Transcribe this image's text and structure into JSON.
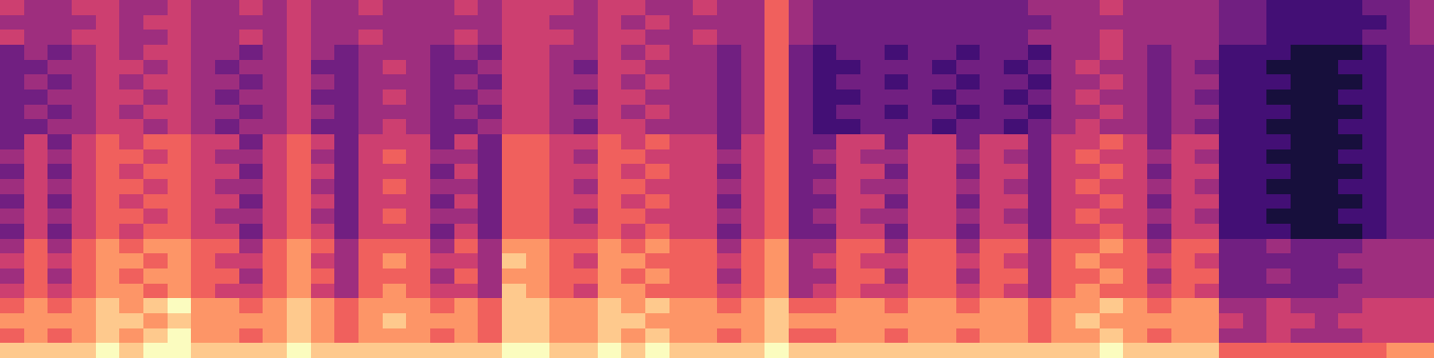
{
  "chart_data": {
    "type": "heatmap",
    "color": "magma",
    "tick_labels": false,
    "value_range": [
      0,
      9
    ],
    "cells": [
      [
        5,
        4,
        4,
        5,
        5,
        4,
        4,
        5,
        4,
        4,
        5,
        4,
        5,
        4,
        4,
        5,
        4,
        4,
        4,
        5,
        4,
        5,
        5,
        5,
        4,
        5,
        5,
        4,
        4,
        5,
        4,
        4,
        6,
        4,
        3,
        3,
        3,
        3,
        3,
        3,
        3,
        3,
        3,
        4,
        4,
        4,
        5,
        4,
        4,
        4,
        4,
        3,
        3,
        2,
        2,
        2,
        2,
        3,
        3,
        4
      ],
      [
        4,
        4,
        4,
        4,
        5,
        4,
        5,
        5,
        4,
        4,
        4,
        4,
        5,
        4,
        4,
        4,
        4,
        4,
        4,
        4,
        4,
        5,
        5,
        4,
        4,
        5,
        4,
        5,
        4,
        4,
        4,
        4,
        6,
        4,
        3,
        3,
        3,
        3,
        3,
        3,
        3,
        3,
        3,
        3,
        4,
        4,
        4,
        4,
        4,
        4,
        4,
        3,
        3,
        2,
        2,
        2,
        2,
        2,
        3,
        4
      ],
      [
        5,
        4,
        4,
        5,
        5,
        4,
        4,
        5,
        4,
        4,
        5,
        4,
        5,
        4,
        4,
        5,
        4,
        4,
        4,
        5,
        4,
        5,
        5,
        5,
        4,
        5,
        5,
        4,
        4,
        5,
        4,
        4,
        6,
        4,
        3,
        3,
        3,
        3,
        3,
        3,
        3,
        3,
        3,
        4,
        4,
        4,
        5,
        4,
        4,
        4,
        4,
        3,
        3,
        2,
        2,
        2,
        2,
        3,
        3,
        4
      ],
      [
        3,
        4,
        3,
        4,
        5,
        4,
        5,
        5,
        4,
        4,
        3,
        4,
        5,
        4,
        3,
        4,
        4,
        4,
        3,
        4,
        3,
        5,
        5,
        4,
        4,
        5,
        4,
        5,
        4,
        4,
        3,
        4,
        6,
        3,
        2,
        3,
        3,
        2,
        3,
        3,
        2,
        3,
        3,
        2,
        4,
        4,
        5,
        4,
        3,
        4,
        4,
        2,
        2,
        2,
        1,
        1,
        1,
        2,
        3,
        3
      ],
      [
        3,
        3,
        4,
        4,
        5,
        5,
        4,
        5,
        4,
        3,
        4,
        4,
        5,
        3,
        3,
        4,
        5,
        4,
        3,
        3,
        4,
        5,
        5,
        4,
        3,
        5,
        5,
        4,
        4,
        4,
        3,
        4,
        6,
        3,
        2,
        2,
        3,
        3,
        3,
        2,
        3,
        3,
        2,
        3,
        4,
        5,
        4,
        4,
        3,
        4,
        3,
        2,
        2,
        1,
        1,
        1,
        2,
        2,
        3,
        3
      ],
      [
        3,
        4,
        3,
        4,
        5,
        4,
        5,
        5,
        4,
        4,
        3,
        4,
        5,
        4,
        3,
        4,
        4,
        4,
        3,
        4,
        3,
        5,
        5,
        4,
        4,
        5,
        4,
        5,
        4,
        4,
        3,
        4,
        6,
        3,
        2,
        3,
        3,
        2,
        3,
        3,
        2,
        3,
        3,
        2,
        4,
        4,
        5,
        4,
        3,
        4,
        4,
        2,
        2,
        2,
        1,
        1,
        1,
        2,
        3,
        3
      ],
      [
        3,
        3,
        4,
        4,
        5,
        5,
        4,
        5,
        4,
        3,
        4,
        4,
        5,
        3,
        3,
        4,
        5,
        4,
        3,
        3,
        4,
        5,
        5,
        4,
        3,
        5,
        5,
        4,
        4,
        4,
        3,
        4,
        6,
        3,
        2,
        2,
        3,
        3,
        3,
        2,
        3,
        3,
        2,
        3,
        4,
        5,
        4,
        4,
        3,
        4,
        3,
        2,
        2,
        1,
        1,
        1,
        2,
        2,
        3,
        3
      ],
      [
        3,
        4,
        3,
        4,
        5,
        4,
        5,
        5,
        4,
        4,
        3,
        4,
        5,
        4,
        3,
        4,
        4,
        4,
        3,
        4,
        3,
        5,
        5,
        4,
        4,
        5,
        4,
        5,
        4,
        4,
        3,
        4,
        6,
        3,
        2,
        3,
        3,
        2,
        3,
        3,
        2,
        3,
        3,
        2,
        4,
        4,
        5,
        4,
        3,
        4,
        4,
        2,
        2,
        2,
        1,
        1,
        1,
        2,
        3,
        3
      ],
      [
        3,
        3,
        4,
        4,
        5,
        5,
        4,
        5,
        4,
        3,
        4,
        4,
        5,
        3,
        3,
        4,
        5,
        4,
        3,
        3,
        4,
        5,
        5,
        4,
        3,
        5,
        5,
        4,
        4,
        4,
        3,
        4,
        6,
        3,
        2,
        2,
        3,
        3,
        3,
        2,
        3,
        3,
        2,
        3,
        4,
        5,
        4,
        4,
        3,
        4,
        3,
        2,
        2,
        1,
        1,
        1,
        2,
        2,
        3,
        3
      ],
      [
        3,
        5,
        3,
        5,
        6,
        5,
        6,
        6,
        5,
        5,
        3,
        5,
        6,
        5,
        3,
        5,
        5,
        5,
        3,
        5,
        3,
        6,
        6,
        5,
        5,
        6,
        5,
        6,
        5,
        5,
        3,
        5,
        6,
        3,
        3,
        5,
        5,
        3,
        5,
        5,
        3,
        5,
        5,
        3,
        5,
        5,
        6,
        5,
        3,
        5,
        5,
        2,
        2,
        2,
        1,
        1,
        1,
        2,
        3,
        3
      ],
      [
        4,
        5,
        4,
        5,
        6,
        6,
        5,
        6,
        5,
        4,
        4,
        5,
        6,
        4,
        3,
        5,
        6,
        5,
        4,
        4,
        3,
        6,
        6,
        5,
        4,
        6,
        6,
        5,
        5,
        5,
        4,
        5,
        6,
        3,
        4,
        5,
        4,
        4,
        5,
        5,
        4,
        5,
        4,
        3,
        5,
        6,
        5,
        5,
        4,
        5,
        4,
        2,
        2,
        1,
        1,
        1,
        2,
        2,
        3,
        3
      ],
      [
        3,
        5,
        3,
        5,
        6,
        5,
        6,
        6,
        5,
        5,
        3,
        5,
        6,
        5,
        3,
        5,
        5,
        5,
        3,
        5,
        3,
        6,
        6,
        5,
        5,
        6,
        5,
        6,
        5,
        5,
        3,
        5,
        6,
        3,
        3,
        5,
        5,
        3,
        5,
        5,
        3,
        5,
        5,
        3,
        5,
        5,
        6,
        5,
        3,
        5,
        5,
        2,
        2,
        2,
        1,
        1,
        1,
        2,
        3,
        3
      ],
      [
        4,
        5,
        4,
        5,
        6,
        6,
        5,
        6,
        5,
        4,
        4,
        5,
        6,
        4,
        3,
        5,
        6,
        5,
        4,
        4,
        3,
        6,
        6,
        5,
        4,
        6,
        6,
        5,
        5,
        5,
        4,
        5,
        6,
        3,
        4,
        5,
        4,
        4,
        5,
        5,
        4,
        5,
        4,
        3,
        5,
        6,
        5,
        5,
        4,
        5,
        4,
        2,
        2,
        1,
        1,
        1,
        2,
        2,
        3,
        3
      ],
      [
        3,
        5,
        3,
        5,
        6,
        5,
        6,
        6,
        5,
        5,
        3,
        5,
        6,
        5,
        3,
        5,
        5,
        5,
        3,
        5,
        3,
        6,
        6,
        5,
        5,
        6,
        5,
        6,
        5,
        5,
        3,
        5,
        6,
        3,
        3,
        5,
        5,
        3,
        5,
        5,
        3,
        5,
        5,
        3,
        5,
        5,
        6,
        5,
        3,
        5,
        5,
        2,
        2,
        2,
        1,
        1,
        1,
        2,
        3,
        3
      ],
      [
        4,
        5,
        4,
        5,
        6,
        6,
        5,
        6,
        5,
        4,
        4,
        5,
        6,
        4,
        3,
        5,
        6,
        5,
        4,
        4,
        3,
        6,
        6,
        5,
        4,
        6,
        6,
        5,
        5,
        5,
        4,
        5,
        6,
        3,
        4,
        5,
        4,
        4,
        5,
        5,
        4,
        5,
        4,
        3,
        5,
        6,
        5,
        5,
        4,
        5,
        4,
        2,
        2,
        1,
        1,
        1,
        2,
        2,
        3,
        3
      ],
      [
        3,
        5,
        3,
        5,
        6,
        5,
        6,
        6,
        5,
        5,
        3,
        5,
        6,
        5,
        3,
        5,
        5,
        5,
        3,
        5,
        3,
        6,
        6,
        5,
        5,
        6,
        5,
        6,
        5,
        5,
        3,
        5,
        6,
        3,
        3,
        5,
        5,
        3,
        5,
        5,
        3,
        5,
        5,
        3,
        5,
        5,
        6,
        5,
        3,
        5,
        5,
        2,
        2,
        2,
        1,
        1,
        1,
        2,
        3,
        3
      ],
      [
        4,
        6,
        4,
        6,
        7,
        6,
        7,
        7,
        6,
        6,
        4,
        6,
        7,
        6,
        4,
        6,
        6,
        6,
        4,
        6,
        4,
        7,
        7,
        6,
        6,
        7,
        6,
        7,
        6,
        6,
        4,
        6,
        7,
        4,
        4,
        6,
        6,
        4,
        6,
        6,
        4,
        6,
        6,
        4,
        6,
        6,
        7,
        6,
        4,
        6,
        6,
        3,
        3,
        4,
        3,
        3,
        3,
        4,
        4,
        4
      ],
      [
        5,
        6,
        5,
        6,
        7,
        7,
        6,
        7,
        6,
        5,
        5,
        6,
        7,
        5,
        4,
        6,
        7,
        6,
        5,
        5,
        4,
        8,
        7,
        6,
        5,
        7,
        7,
        6,
        6,
        6,
        5,
        6,
        7,
        4,
        5,
        6,
        5,
        5,
        6,
        6,
        5,
        6,
        5,
        4,
        6,
        7,
        6,
        6,
        5,
        6,
        5,
        3,
        3,
        3,
        3,
        3,
        4,
        4,
        4,
        4
      ],
      [
        4,
        6,
        4,
        6,
        7,
        6,
        7,
        7,
        6,
        6,
        4,
        6,
        7,
        6,
        4,
        6,
        6,
        6,
        4,
        6,
        4,
        7,
        7,
        6,
        6,
        7,
        6,
        7,
        6,
        6,
        4,
        6,
        7,
        4,
        4,
        6,
        6,
        4,
        6,
        6,
        4,
        6,
        6,
        4,
        6,
        6,
        7,
        6,
        4,
        6,
        6,
        3,
        3,
        4,
        3,
        3,
        3,
        4,
        4,
        4
      ],
      [
        5,
        6,
        5,
        6,
        7,
        7,
        6,
        7,
        6,
        5,
        5,
        6,
        7,
        5,
        4,
        6,
        7,
        6,
        5,
        5,
        4,
        8,
        7,
        6,
        5,
        7,
        7,
        6,
        6,
        6,
        5,
        6,
        7,
        4,
        5,
        6,
        5,
        5,
        6,
        6,
        5,
        6,
        5,
        4,
        6,
        7,
        6,
        6,
        5,
        6,
        5,
        3,
        3,
        3,
        3,
        3,
        4,
        4,
        4,
        4
      ],
      [
        6,
        7,
        6,
        7,
        8,
        7,
        8,
        9,
        7,
        7,
        6,
        7,
        8,
        7,
        6,
        7,
        7,
        7,
        6,
        7,
        6,
        8,
        8,
        7,
        7,
        8,
        7,
        8,
        7,
        7,
        6,
        7,
        8,
        6,
        6,
        7,
        7,
        6,
        7,
        7,
        6,
        7,
        7,
        6,
        7,
        7,
        8,
        7,
        6,
        7,
        7,
        4,
        4,
        5,
        4,
        4,
        4,
        5,
        5,
        5
      ],
      [
        7,
        7,
        7,
        7,
        8,
        8,
        7,
        8,
        7,
        7,
        7,
        7,
        8,
        7,
        6,
        7,
        8,
        7,
        7,
        7,
        6,
        8,
        8,
        7,
        7,
        8,
        8,
        7,
        7,
        7,
        7,
        7,
        8,
        7,
        7,
        7,
        7,
        7,
        7,
        7,
        7,
        7,
        7,
        6,
        7,
        8,
        7,
        7,
        7,
        7,
        7,
        5,
        4,
        5,
        5,
        4,
        5,
        5,
        5,
        5
      ],
      [
        6,
        7,
        6,
        7,
        8,
        7,
        8,
        9,
        7,
        7,
        6,
        7,
        8,
        7,
        6,
        7,
        7,
        7,
        6,
        7,
        6,
        8,
        8,
        7,
        7,
        8,
        7,
        8,
        7,
        7,
        6,
        7,
        8,
        6,
        6,
        7,
        7,
        6,
        7,
        7,
        6,
        7,
        7,
        6,
        7,
        7,
        8,
        7,
        6,
        7,
        7,
        4,
        4,
        5,
        4,
        4,
        4,
        5,
        5,
        5
      ],
      [
        8,
        8,
        8,
        8,
        9,
        8,
        9,
        9,
        8,
        8,
        8,
        8,
        9,
        8,
        8,
        8,
        8,
        8,
        8,
        8,
        8,
        9,
        9,
        8,
        8,
        9,
        8,
        9,
        8,
        8,
        8,
        8,
        9,
        8,
        8,
        8,
        8,
        8,
        8,
        8,
        8,
        8,
        8,
        8,
        8,
        8,
        9,
        8,
        8,
        8,
        8,
        6,
        6,
        6,
        6,
        6,
        6,
        6,
        7,
        7
      ]
    ]
  }
}
